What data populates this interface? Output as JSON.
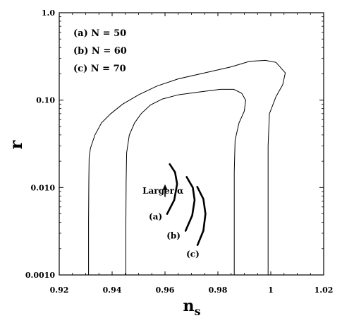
{
  "chart_data": {
    "type": "line",
    "xlabel": "n",
    "xlabel_sub": "s",
    "ylabel": "r",
    "xlim": [
      0.92,
      1.02
    ],
    "ylim": [
      0.001,
      1.0
    ],
    "yscale": "log",
    "grid": false,
    "legend_position": "top-left",
    "xticks": [
      {
        "value": 0.92,
        "label": "0.92"
      },
      {
        "value": 0.94,
        "label": "0.94"
      },
      {
        "value": 0.96,
        "label": "0.96"
      },
      {
        "value": 0.98,
        "label": "0.98"
      },
      {
        "value": 1.0,
        "label": "1"
      },
      {
        "value": 1.02,
        "label": "1.02"
      }
    ],
    "yticks": [
      {
        "value": 0.001,
        "label": "0.0010"
      },
      {
        "value": 0.01,
        "label": "0.010"
      },
      {
        "value": 0.1,
        "label": "0.10"
      },
      {
        "value": 1.0,
        "label": "1.0"
      }
    ],
    "legend": [
      "(a) N = 50",
      "(b) N = 60",
      "(c) N = 70"
    ],
    "contours": [
      {
        "points": [
          [
            0.9311,
            0.001
          ],
          [
            0.9311,
            0.004
          ],
          [
            0.9312,
            0.012
          ],
          [
            0.9313,
            0.022
          ],
          [
            0.9318,
            0.028
          ],
          [
            0.9335,
            0.04
          ],
          [
            0.936,
            0.055
          ],
          [
            0.9395,
            0.07
          ],
          [
            0.944,
            0.09
          ],
          [
            0.95,
            0.115
          ],
          [
            0.957,
            0.145
          ],
          [
            0.965,
            0.175
          ],
          [
            0.975,
            0.205
          ],
          [
            0.985,
            0.24
          ],
          [
            0.992,
            0.278
          ],
          [
            0.998,
            0.285
          ],
          [
            1.002,
            0.27
          ],
          [
            1.0055,
            0.205
          ],
          [
            1.0045,
            0.15
          ],
          [
            1.002,
            0.11
          ],
          [
            0.9995,
            0.07
          ],
          [
            0.999,
            0.03
          ],
          [
            0.999,
            0.01
          ],
          [
            0.999,
            0.001
          ]
        ]
      },
      {
        "points": [
          [
            0.9452,
            0.001
          ],
          [
            0.9452,
            0.004
          ],
          [
            0.9453,
            0.012
          ],
          [
            0.9455,
            0.025
          ],
          [
            0.9465,
            0.04
          ],
          [
            0.9485,
            0.055
          ],
          [
            0.951,
            0.07
          ],
          [
            0.9545,
            0.088
          ],
          [
            0.959,
            0.103
          ],
          [
            0.965,
            0.115
          ],
          [
            0.973,
            0.124
          ],
          [
            0.981,
            0.133
          ],
          [
            0.986,
            0.133
          ],
          [
            0.989,
            0.12
          ],
          [
            0.9905,
            0.1
          ],
          [
            0.99,
            0.075
          ],
          [
            0.988,
            0.055
          ],
          [
            0.9865,
            0.035
          ],
          [
            0.9862,
            0.015
          ],
          [
            0.9862,
            0.001
          ]
        ]
      }
    ],
    "series": [
      {
        "label": "(a)",
        "points": [
          [
            0.9608,
            0.005
          ],
          [
            0.9635,
            0.0072
          ],
          [
            0.9646,
            0.011
          ],
          [
            0.9638,
            0.015
          ],
          [
            0.9618,
            0.0185
          ]
        ]
      },
      {
        "label": "(b)",
        "points": [
          [
            0.9678,
            0.0032
          ],
          [
            0.9703,
            0.0048
          ],
          [
            0.9712,
            0.0072
          ],
          [
            0.9705,
            0.01
          ],
          [
            0.9682,
            0.0132
          ]
        ]
      },
      {
        "label": "(c)",
        "points": [
          [
            0.9723,
            0.0022
          ],
          [
            0.9745,
            0.0032
          ],
          [
            0.9753,
            0.005
          ],
          [
            0.9745,
            0.0074
          ],
          [
            0.9722,
            0.0102
          ]
        ]
      }
    ],
    "annotation": {
      "text": "Larger α",
      "x": 0.9515,
      "y": 0.0085
    },
    "arrow": {
      "from": [
        0.96,
        0.0078
      ],
      "to": [
        0.96,
        0.0105
      ]
    }
  }
}
